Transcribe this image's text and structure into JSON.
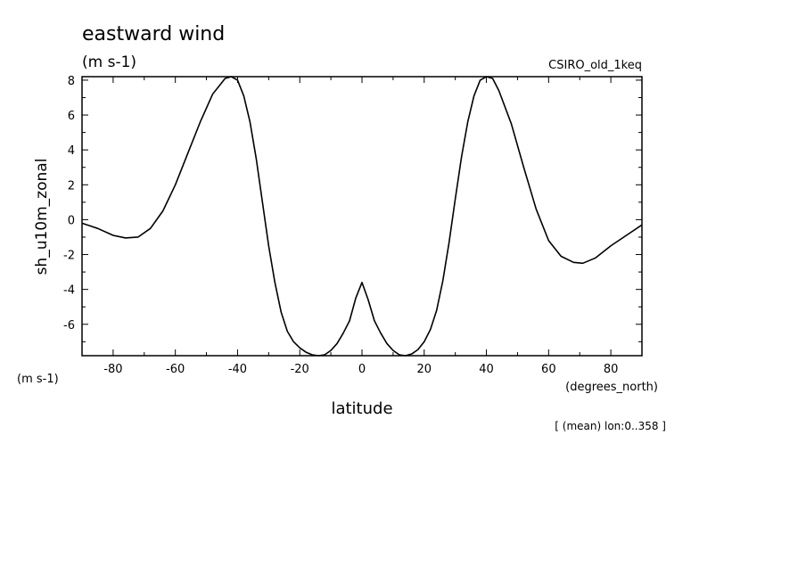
{
  "chart_data": {
    "type": "line",
    "title": "eastward wind",
    "units": "(m s-1)",
    "run_label": "CSIRO_old_1keq",
    "ylabel": "sh_u10m_zonal",
    "y_units_label": "(m s-1)",
    "xlabel": "latitude",
    "x_units_label": "(degrees_north)",
    "footnote": "[ (mean) lon:0..358 ]",
    "xlim": [
      -90,
      90
    ],
    "ylim": [
      -7.8,
      8.2
    ],
    "xticks": [
      -80,
      -60,
      -40,
      -20,
      0,
      20,
      40,
      60,
      80
    ],
    "xtick_labels": [
      "-80",
      "-60",
      "-40",
      "-20",
      "0",
      "20",
      "40",
      "60",
      "80"
    ],
    "yticks": [
      -6,
      -4,
      -2,
      0,
      2,
      4,
      6,
      8
    ],
    "ytick_labels": [
      "-6",
      "-4",
      "-2",
      "0",
      "2",
      "4",
      "6",
      "8"
    ],
    "grid": false,
    "series": [
      {
        "color": "#000000",
        "x": [
          -90,
          -85,
          -80,
          -76,
          -72,
          -68,
          -64,
          -60,
          -56,
          -52,
          -48,
          -44,
          -42,
          -40,
          -38,
          -36,
          -34,
          -32,
          -30,
          -28,
          -26,
          -24,
          -22,
          -20,
          -18,
          -16,
          -14,
          -12,
          -10,
          -8,
          -6,
          -4,
          -2,
          0,
          2,
          4,
          6,
          8,
          10,
          12,
          14,
          16,
          18,
          20,
          22,
          24,
          26,
          28,
          30,
          32,
          34,
          36,
          38,
          40,
          42,
          44,
          48,
          52,
          56,
          60,
          64,
          68,
          71,
          75,
          80,
          85,
          90
        ],
        "y": [
          -0.2,
          -0.5,
          -0.9,
          -1.05,
          -1.0,
          -0.5,
          0.5,
          2.0,
          3.8,
          5.6,
          7.2,
          8.1,
          8.2,
          8.0,
          7.1,
          5.6,
          3.5,
          1.0,
          -1.5,
          -3.6,
          -5.3,
          -6.4,
          -7.0,
          -7.35,
          -7.6,
          -7.75,
          -7.8,
          -7.75,
          -7.5,
          -7.1,
          -6.5,
          -5.8,
          -4.5,
          -3.6,
          -4.6,
          -5.8,
          -6.5,
          -7.1,
          -7.5,
          -7.75,
          -7.8,
          -7.7,
          -7.45,
          -7.0,
          -6.3,
          -5.2,
          -3.5,
          -1.3,
          1.2,
          3.6,
          5.6,
          7.1,
          8.0,
          8.2,
          8.1,
          7.4,
          5.5,
          3.0,
          0.6,
          -1.2,
          -2.1,
          -2.45,
          -2.5,
          -2.2,
          -1.5,
          -0.9,
          -0.3
        ]
      }
    ]
  }
}
